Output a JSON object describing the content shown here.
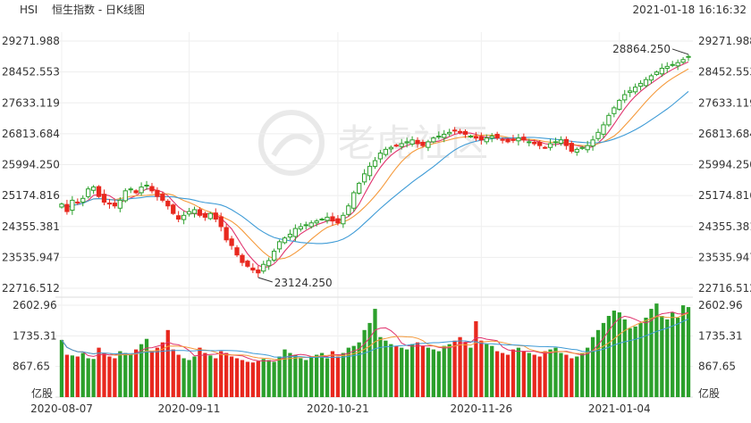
{
  "header": {
    "symbol": "HSI",
    "title": "恒生指数 - 日K线图",
    "timestamp": "2021-01-18 16:16:32"
  },
  "watermark": {
    "text": "老虎社区"
  },
  "chart_data": [
    {
      "type": "candlestick",
      "title": "恒生指数 - 日K线图",
      "y_axis_labels": [
        "29271.988",
        "28452.553",
        "27633.119",
        "26813.684",
        "25994.250",
        "25174.816",
        "24355.381",
        "23535.947",
        "22716.512"
      ],
      "ylim": [
        22716.512,
        29271.988
      ],
      "x_axis_labels": [
        "2020-08-07",
        "2020-09-11",
        "2020-10-21",
        "2020-11-26",
        "2021-01-04"
      ],
      "x_label_indices": [
        0,
        24,
        52,
        79,
        105
      ],
      "annotations": [
        {
          "text": "28864.250",
          "type": "max",
          "index": 118,
          "value": 28864.25
        },
        {
          "text": "23124.250",
          "type": "min",
          "index": 37,
          "value": 23124.25
        }
      ],
      "colors": {
        "up": "#2ca02c",
        "down": "#e8281e",
        "ma1": "#e0336e",
        "ma2": "#f59a3c",
        "ma3": "#3e9bd6"
      },
      "closes": [
        24950,
        24750,
        25050,
        25000,
        25100,
        25350,
        25400,
        25150,
        25000,
        24950,
        24900,
        25050,
        25300,
        25350,
        25250,
        25400,
        25450,
        25300,
        25150,
        25050,
        24900,
        24700,
        24550,
        24650,
        24750,
        24800,
        24650,
        24600,
        24700,
        24550,
        24350,
        24000,
        23850,
        23600,
        23400,
        23300,
        23200,
        23124,
        23350,
        23450,
        23700,
        23950,
        24050,
        24150,
        24300,
        24350,
        24400,
        24450,
        24500,
        24550,
        24600,
        24500,
        24450,
        24650,
        24900,
        25250,
        25500,
        25750,
        25950,
        26100,
        26300,
        26400,
        26450,
        26500,
        26550,
        26600,
        26650,
        26550,
        26500,
        26600,
        26700,
        26750,
        26800,
        26850,
        26900,
        26850,
        26800,
        26750,
        26700,
        26650,
        26700,
        26750,
        26700,
        26650,
        26600,
        26650,
        26700,
        26650,
        26600,
        26550,
        26500,
        26450,
        26550,
        26600,
        26650,
        26500,
        26350,
        26400,
        26450,
        26500,
        26650,
        26850,
        27050,
        27300,
        27500,
        27700,
        27850,
        27950,
        28050,
        28150,
        28250,
        28350,
        28450,
        28550,
        28600,
        28650,
        28700,
        28780,
        28864
      ],
      "volume": {
        "y_axis_labels": [
          "2602.96",
          "1735.31",
          "867.65"
        ],
        "unit": "亿股",
        "ylim": [
          0,
          2602.96
        ],
        "values": [
          1620,
          1200,
          1180,
          1150,
          1250,
          1100,
          1080,
          1400,
          1250,
          1150,
          1100,
          1300,
          1250,
          1200,
          1350,
          1500,
          1650,
          1300,
          1400,
          1550,
          1900,
          1350,
          1200,
          1100,
          1050,
          1150,
          1400,
          1250,
          1180,
          1100,
          1300,
          1250,
          1150,
          1100,
          1050,
          1000,
          980,
          1020,
          1080,
          1050,
          1000,
          1150,
          1350,
          1250,
          1200,
          1100,
          1050,
          1150,
          1200,
          1250,
          1100,
          1300,
          1150,
          1250,
          1400,
          1450,
          1550,
          1900,
          2100,
          2500,
          1700,
          1600,
          1500,
          1450,
          1400,
          1350,
          1500,
          1550,
          1450,
          1400,
          1350,
          1300,
          1450,
          1500,
          1600,
          1700,
          1550,
          1400,
          2150,
          1600,
          1500,
          1450,
          1300,
          1250,
          1200,
          1350,
          1400,
          1300,
          1250,
          1200,
          1150,
          1300,
          1350,
          1400,
          1250,
          1200,
          1100,
          1150,
          1250,
          1400,
          1700,
          1900,
          2100,
          2300,
          2450,
          2400,
          2200,
          1950,
          2000,
          2100,
          2250,
          2500,
          2650,
          2300,
          2200,
          2400,
          2250,
          2600,
          2550
        ]
      }
    }
  ]
}
